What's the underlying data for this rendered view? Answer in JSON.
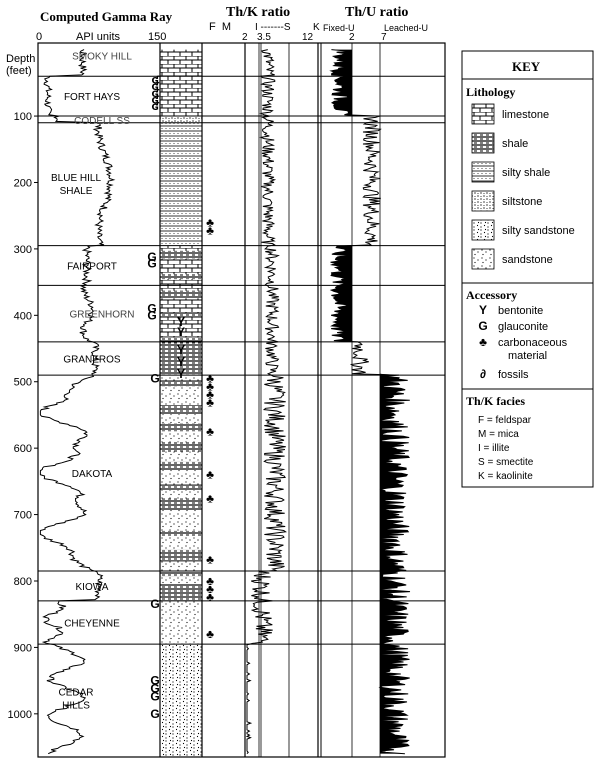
{
  "header": {
    "gamma_title": "Computed Gamma Ray",
    "gamma_units": "API units",
    "gamma_tick_min": "0",
    "gamma_tick_max": "150",
    "thk_title": "Th/K ratio",
    "thu_title": "Th/U ratio",
    "thk_letters": "F  M",
    "thk_ticks": [
      "2",
      "3.5",
      "12"
    ],
    "thk_facies_range": "I -------S",
    "thk_kaolinite_letter": "K",
    "thu_ticks": [
      "2",
      "7"
    ],
    "thu_fixed": "Fixed-U",
    "thu_leached": "Leached-U",
    "depth_label": "Depth",
    "depth_unit": "(feet)"
  },
  "depth_axis": {
    "ticks": [
      100,
      200,
      300,
      400,
      500,
      600,
      700,
      800,
      900,
      1000
    ]
  },
  "formations": [
    {
      "name": "SMOKY HILL",
      "top": 0,
      "bottom": 40,
      "lith": "limestone"
    },
    {
      "name": "FORT HAYS",
      "top": 40,
      "bottom": 100,
      "lith": "limestone"
    },
    {
      "name": "CODELL SS",
      "top": 100,
      "bottom": 110,
      "lith": "siltstone"
    },
    {
      "name": "BLUE HILL\nSHALE",
      "top": 110,
      "bottom": 295,
      "lith": "silty shale"
    },
    {
      "name": "FAIRPORT",
      "top": 295,
      "bottom": 355,
      "lith": "limestone-shale"
    },
    {
      "name": "GREENHORN",
      "top": 355,
      "bottom": 440,
      "lith": "limestone-shale"
    },
    {
      "name": "GRANEROS",
      "top": 440,
      "bottom": 490,
      "lith": "shale"
    },
    {
      "name": "DAKOTA",
      "top": 490,
      "bottom": 785,
      "lith": "sandstone-shale"
    },
    {
      "name": "KIOWA",
      "top": 785,
      "bottom": 830,
      "lith": "shale-sandstone"
    },
    {
      "name": "CHEYENNE",
      "top": 830,
      "bottom": 895,
      "lith": "sandstone"
    },
    {
      "name": "CEDAR\nHILLS",
      "top": 895,
      "bottom": 1065,
      "lith": "silty sandstone"
    }
  ],
  "key": {
    "title": "KEY",
    "lithology_title": "Lithology",
    "lithology": [
      "limestone",
      "shale",
      "silty shale",
      "siltstone",
      "silty sandstone",
      "sandstone"
    ],
    "accessory_title": "Accessory",
    "accessory": [
      {
        "symbol": "Y",
        "label": "bentonite"
      },
      {
        "symbol": "G",
        "label": "glauconite"
      },
      {
        "symbol": "♣",
        "label": "carbonaceous\nmaterial"
      },
      {
        "symbol": "∂",
        "label": "fossils"
      }
    ],
    "facies_title": "Th/K facies",
    "facies": [
      "F = feldspar",
      "M = mica",
      "I = illite",
      "S = smectite",
      "K = kaolinite"
    ]
  },
  "symbols": {
    "fossil": "ʛ",
    "glauconite": "G",
    "bentonite": "Y",
    "carbonaceous": "♣"
  }
}
